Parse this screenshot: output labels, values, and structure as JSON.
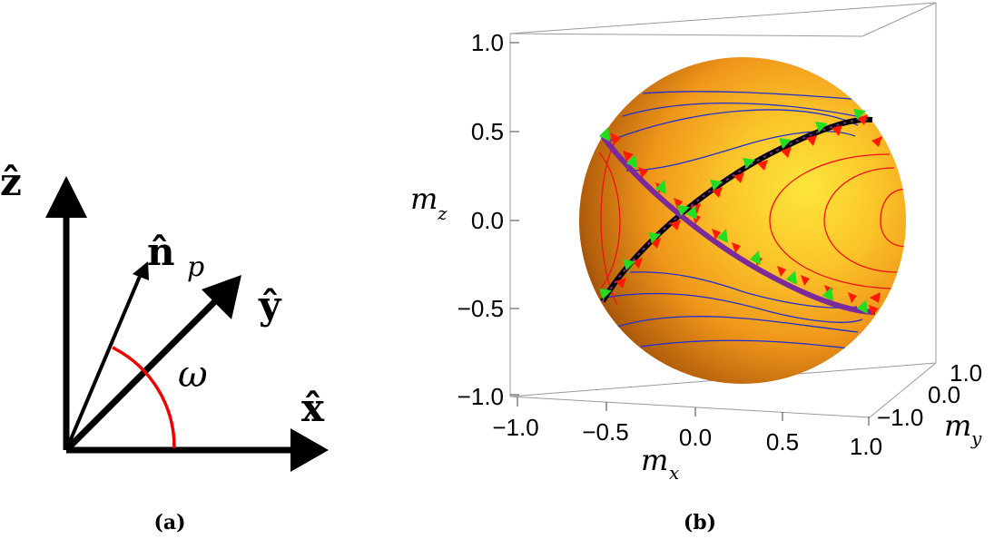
{
  "panel_a": {
    "caption": "(a)",
    "labels": {
      "z": "ẑ",
      "y": "ŷ",
      "x": "x̂",
      "n": "n̂",
      "n_sub": "p",
      "angle": "ω"
    }
  },
  "panel_b": {
    "caption": "(b)",
    "axis_labels": {
      "mz": "m",
      "mz_sub": "z",
      "mx": "m",
      "mx_sub": "x",
      "my": "m",
      "my_sub": "y"
    },
    "mz_ticks": [
      "1.0",
      "0.5",
      "0.0",
      "−0.5",
      "−1.0"
    ],
    "mx_ticks": [
      "−1.0",
      "−0.5",
      "0.0",
      "0.5",
      "1.0"
    ],
    "my_ticks": [
      "1.0",
      "0.0",
      "−1.0"
    ]
  },
  "colors": {
    "sphere_light": "#fde03a",
    "sphere_mid": "#f39a16",
    "sphere_dark": "#4a2404",
    "blue_contour": "#1f2fd0",
    "red_contour": "#ee1111",
    "separatrix_black": "#000000",
    "separatrix_purple": "#7a2a9a",
    "arrow_green": "#22dd22",
    "arrow_red": "#ff1a00",
    "angle_arc": "#ee0000"
  }
}
